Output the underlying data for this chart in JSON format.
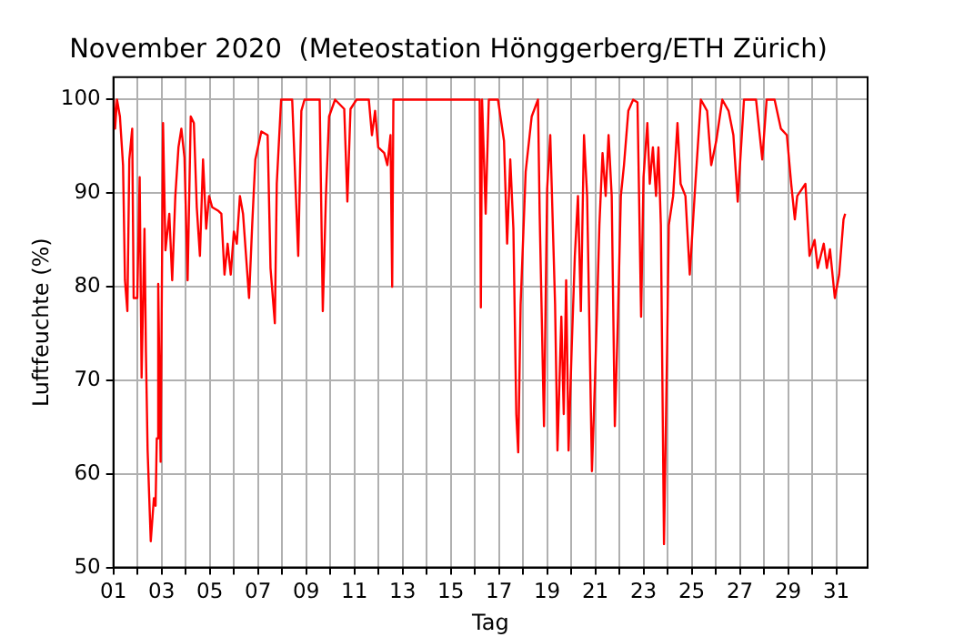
{
  "chart_data": {
    "type": "line",
    "title": "November 2020  (Meteostation Hönggerberg/ETH Zürich)",
    "xlabel": "Tag",
    "ylabel": "Luftfeuchte (%)",
    "xlim": [
      1,
      32.3
    ],
    "ylim": [
      50,
      102.4
    ],
    "xticks": [
      {
        "value": 1,
        "label": "01"
      },
      {
        "value": 2,
        "label": null
      },
      {
        "value": 3,
        "label": "03"
      },
      {
        "value": 4,
        "label": null
      },
      {
        "value": 5,
        "label": "05"
      },
      {
        "value": 6,
        "label": null
      },
      {
        "value": 7,
        "label": "07"
      },
      {
        "value": 8,
        "label": null
      },
      {
        "value": 9,
        "label": "09"
      },
      {
        "value": 10,
        "label": null
      },
      {
        "value": 11,
        "label": "11"
      },
      {
        "value": 12,
        "label": null
      },
      {
        "value": 13,
        "label": "13"
      },
      {
        "value": 14,
        "label": null
      },
      {
        "value": 15,
        "label": "15"
      },
      {
        "value": 16,
        "label": null
      },
      {
        "value": 17,
        "label": "17"
      },
      {
        "value": 18,
        "label": null
      },
      {
        "value": 19,
        "label": "19"
      },
      {
        "value": 20,
        "label": null
      },
      {
        "value": 21,
        "label": "21"
      },
      {
        "value": 22,
        "label": null
      },
      {
        "value": 23,
        "label": "23"
      },
      {
        "value": 24,
        "label": null
      },
      {
        "value": 25,
        "label": "25"
      },
      {
        "value": 26,
        "label": null
      },
      {
        "value": 27,
        "label": "27"
      },
      {
        "value": 28,
        "label": null
      },
      {
        "value": 29,
        "label": "29"
      },
      {
        "value": 30,
        "label": null
      },
      {
        "value": 31,
        "label": "31"
      }
    ],
    "yticks": [
      50,
      60,
      70,
      80,
      90,
      100
    ],
    "grid": true,
    "marker": "none",
    "line_style": "solid",
    "x": [
      1.02,
      1.07,
      1.15,
      1.27,
      1.4,
      1.48,
      1.58,
      1.66,
      1.78,
      1.84,
      1.99,
      2.09,
      2.17,
      2.29,
      2.35,
      2.42,
      2.55,
      2.68,
      2.75,
      2.8,
      2.86,
      2.96,
      3.06,
      3.16,
      3.32,
      3.44,
      3.57,
      3.7,
      3.82,
      3.95,
      4.08,
      4.21,
      4.34,
      4.46,
      4.59,
      4.72,
      4.85,
      4.97,
      5.1,
      5.36,
      5.48,
      5.61,
      5.74,
      5.87,
      6.0,
      6.12,
      6.25,
      6.38,
      6.63,
      6.76,
      6.89,
      7.14,
      7.4,
      7.52,
      7.7,
      7.78,
      7.96,
      8.42,
      8.67,
      8.8,
      8.93,
      9.18,
      9.56,
      9.69,
      9.82,
      9.95,
      10.2,
      10.58,
      10.71,
      10.84,
      11.09,
      11.6,
      11.73,
      11.86,
      11.99,
      12.24,
      12.37,
      12.5,
      12.57,
      12.62,
      16.2,
      16.25,
      16.3,
      16.45,
      16.58,
      16.96,
      17.21,
      17.34,
      17.47,
      17.6,
      17.72,
      17.8,
      17.9,
      18.11,
      18.36,
      18.62,
      18.69,
      18.87,
      19.0,
      19.13,
      19.33,
      19.43,
      19.59,
      19.69,
      19.79,
      19.89,
      20.02,
      20.15,
      20.28,
      20.4,
      20.53,
      20.66,
      20.86,
      20.99,
      21.17,
      21.3,
      21.43,
      21.55,
      21.68,
      21.81,
      21.94,
      22.06,
      22.19,
      22.37,
      22.57,
      22.75,
      22.9,
      23.0,
      23.16,
      23.26,
      23.39,
      23.52,
      23.62,
      23.72,
      23.85,
      23.98,
      24.05,
      24.23,
      24.41,
      24.54,
      24.74,
      24.92,
      25.12,
      25.38,
      25.64,
      25.81,
      26.02,
      26.27,
      26.53,
      26.73,
      26.91,
      27.17,
      27.67,
      27.93,
      28.11,
      28.44,
      28.7,
      28.95,
      29.13,
      29.28,
      29.38,
      29.72,
      29.79,
      29.89,
      30.1,
      30.23,
      30.48,
      30.61,
      30.74,
      30.94,
      31.12,
      31.3,
      31.37
    ],
    "series": [
      {
        "color": "#ff0000",
        "values": [
          100,
          96.9,
          100,
          98.2,
          93,
          80.7,
          77.4,
          93.6,
          96.9,
          78.8,
          78.8,
          91.7,
          70.3,
          86.2,
          73,
          62.5,
          52.8,
          57.4,
          56.6,
          63.8,
          80.3,
          61.3,
          97.5,
          83.9,
          87.8,
          80.7,
          89.7,
          94.9,
          96.9,
          93.8,
          80.7,
          98.2,
          97.5,
          88.5,
          83.3,
          93.6,
          86.2,
          89.7,
          88.5,
          88.1,
          87.8,
          81.3,
          84.6,
          81.3,
          85.9,
          84.6,
          89.7,
          87.8,
          78.8,
          86.6,
          93.6,
          96.6,
          96.2,
          82,
          76.1,
          91,
          100,
          100,
          83.3,
          98.8,
          100,
          100,
          100,
          77.4,
          89.7,
          98.2,
          100,
          99,
          89.1,
          99,
          100,
          100,
          96.2,
          98.8,
          94.9,
          94.3,
          93,
          96.2,
          80,
          100,
          100,
          77.8,
          100,
          87.8,
          100,
          100,
          95.6,
          84.6,
          93.6,
          86.2,
          66.4,
          62.3,
          78.1,
          92.3,
          98.2,
          100,
          87.8,
          65.1,
          90.4,
          96.2,
          78.1,
          62.5,
          76.8,
          66.4,
          80.7,
          62.5,
          73.5,
          83.3,
          89.7,
          77.4,
          96.2,
          89.7,
          60.3,
          70.3,
          86.6,
          94.3,
          89.7,
          96.2,
          89.7,
          65.1,
          76.8,
          89.7,
          93,
          98.8,
          100,
          99.7,
          76.8,
          91.7,
          97.5,
          91,
          94.9,
          89.7,
          94.9,
          86.6,
          52.5,
          73.5,
          86.6,
          89.7,
          97.5,
          91,
          89.7,
          81.3,
          89.7,
          100,
          98.8,
          93,
          95.6,
          100,
          98.8,
          96.2,
          89.1,
          100,
          100,
          93.6,
          100,
          100,
          96.9,
          96.2,
          91,
          87.2,
          89.7,
          91,
          87.8,
          83.3,
          85,
          82,
          84.6,
          82,
          84,
          78.8,
          81.3,
          87.2,
          87.8
        ]
      }
    ]
  }
}
